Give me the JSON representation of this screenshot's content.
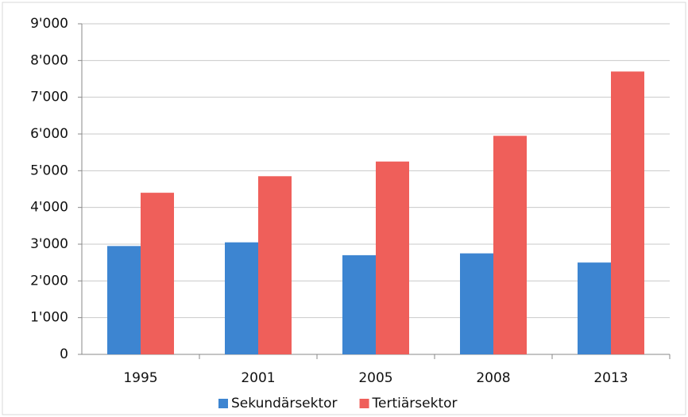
{
  "chart_data": {
    "type": "bar",
    "categories": [
      "1995",
      "2001",
      "2005",
      "2008",
      "2013"
    ],
    "series": [
      {
        "name": "Sekundärsektor",
        "color": "#3d85d1",
        "values": [
          2950,
          3050,
          2700,
          2750,
          2500
        ]
      },
      {
        "name": "Tertiärsektor",
        "color": "#ef5f5a",
        "values": [
          4400,
          4850,
          5250,
          5950,
          7700
        ]
      }
    ],
    "ylim": [
      0,
      9000
    ],
    "yticks": [
      0,
      {
        "value": 1000,
        "label": "1'000"
      },
      {
        "value": 2000,
        "label": "2'000"
      },
      {
        "value": 3000,
        "label": "3'000"
      },
      {
        "value": 4000,
        "label": "4'000"
      },
      {
        "value": 5000,
        "label": "5'000"
      },
      {
        "value": 6000,
        "label": "6'000"
      },
      {
        "value": 7000,
        "label": "7'000"
      },
      {
        "value": 8000,
        "label": "8'000"
      },
      {
        "value": 9000,
        "label": "9'000"
      }
    ],
    "grid": true,
    "legend": "bottom"
  }
}
